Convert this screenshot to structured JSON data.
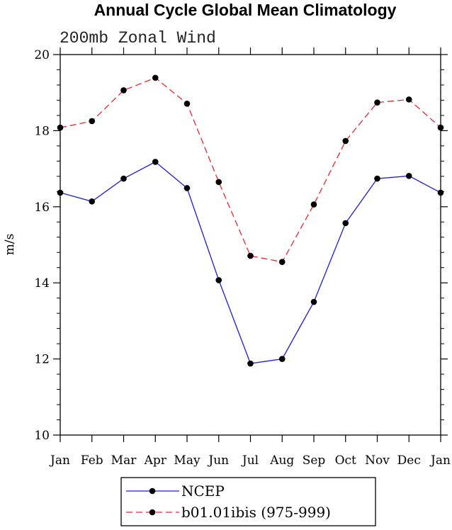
{
  "chart_data": {
    "type": "line",
    "title": "Annual Cycle Global Mean Climatology",
    "subtitle": "200mb Zonal Wind",
    "xlabel": "",
    "ylabel": "m/s",
    "ylim": [
      10,
      20
    ],
    "yticks": [
      "10",
      "12",
      "14",
      "16",
      "18",
      "20"
    ],
    "categories": [
      "Jan",
      "Feb",
      "Mar",
      "Apr",
      "May",
      "Jun",
      "Jul",
      "Aug",
      "Sep",
      "Oct",
      "Nov",
      "Dec",
      "Jan"
    ],
    "grid": false,
    "legend_position": "bottom",
    "series": [
      {
        "name": "NCEP",
        "color": "#1a1adb",
        "dash": "solid",
        "values": [
          16.37,
          16.14,
          16.74,
          17.18,
          16.49,
          14.07,
          11.88,
          12.0,
          13.5,
          15.57,
          16.74,
          16.81,
          16.37
        ]
      },
      {
        "name": "b01.01ibis (975-999)",
        "color": "#e8282c",
        "dash": "dashed",
        "values": [
          18.08,
          18.25,
          19.06,
          19.39,
          18.71,
          16.65,
          14.71,
          14.55,
          16.06,
          17.73,
          18.74,
          18.82,
          18.08
        ]
      }
    ]
  }
}
